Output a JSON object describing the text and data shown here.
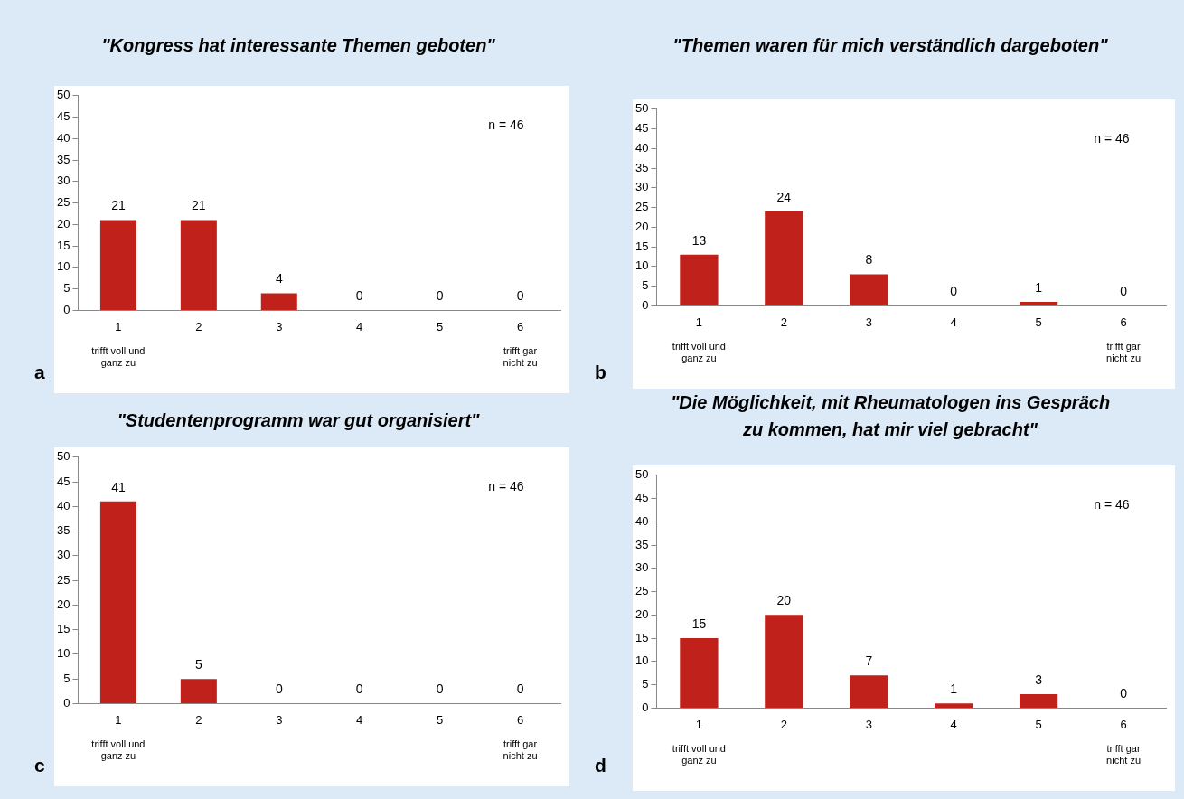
{
  "chart_data": [
    {
      "type": "bar",
      "title": "\"Kongress hat interessante Themen geboten\"",
      "categories": [
        "1",
        "2",
        "3",
        "4",
        "5",
        "6"
      ],
      "values": [
        21,
        21,
        4,
        0,
        0,
        0
      ],
      "color": "#c0211a",
      "ylim": [
        0,
        50
      ],
      "yticks": [
        0,
        5,
        10,
        15,
        20,
        25,
        30,
        35,
        40,
        45,
        50
      ],
      "grid": false,
      "data_labels": true,
      "annotations": [
        "n = 46",
        "trifft voll und ganz zu",
        "trifft gar nicht zu",
        "a"
      ]
    },
    {
      "type": "bar",
      "title": "\"Themen waren für mich verständlich dargeboten\"",
      "categories": [
        "1",
        "2",
        "3",
        "4",
        "5",
        "6"
      ],
      "values": [
        13,
        24,
        8,
        0,
        1,
        0
      ],
      "color": "#c0211a",
      "ylim": [
        0,
        50
      ],
      "yticks": [
        0,
        5,
        10,
        15,
        20,
        25,
        30,
        35,
        40,
        45,
        50
      ],
      "grid": false,
      "data_labels": true,
      "annotations": [
        "n = 46",
        "trifft voll und ganz zu",
        "trifft gar nicht zu",
        "b"
      ]
    },
    {
      "type": "bar",
      "title": "\"Studentenprogramm war gut organisiert\"",
      "categories": [
        "1",
        "2",
        "3",
        "4",
        "5",
        "6"
      ],
      "values": [
        41,
        5,
        0,
        0,
        0,
        0
      ],
      "color": "#c0211a",
      "ylim": [
        0,
        50
      ],
      "yticks": [
        0,
        5,
        10,
        15,
        20,
        25,
        30,
        35,
        40,
        45,
        50
      ],
      "grid": false,
      "data_labels": true,
      "annotations": [
        "n = 46",
        "trifft voll und ganz zu",
        "trifft gar nicht zu",
        "c"
      ]
    },
    {
      "type": "bar",
      "title": "\"Die Möglichkeit, mit Rheumatologen ins Gespräch zu kommen, hat mir viel gebracht\"",
      "categories": [
        "1",
        "2",
        "3",
        "4",
        "5",
        "6"
      ],
      "values": [
        15,
        20,
        7,
        1,
        3,
        0
      ],
      "color": "#c0211a",
      "ylim": [
        0,
        50
      ],
      "yticks": [
        0,
        5,
        10,
        15,
        20,
        25,
        30,
        35,
        40,
        45,
        50
      ],
      "grid": false,
      "data_labels": true,
      "annotations": [
        "n = 46",
        "trifft voll und ganz zu",
        "trifft gar nicht zu",
        "d"
      ]
    }
  ]
}
